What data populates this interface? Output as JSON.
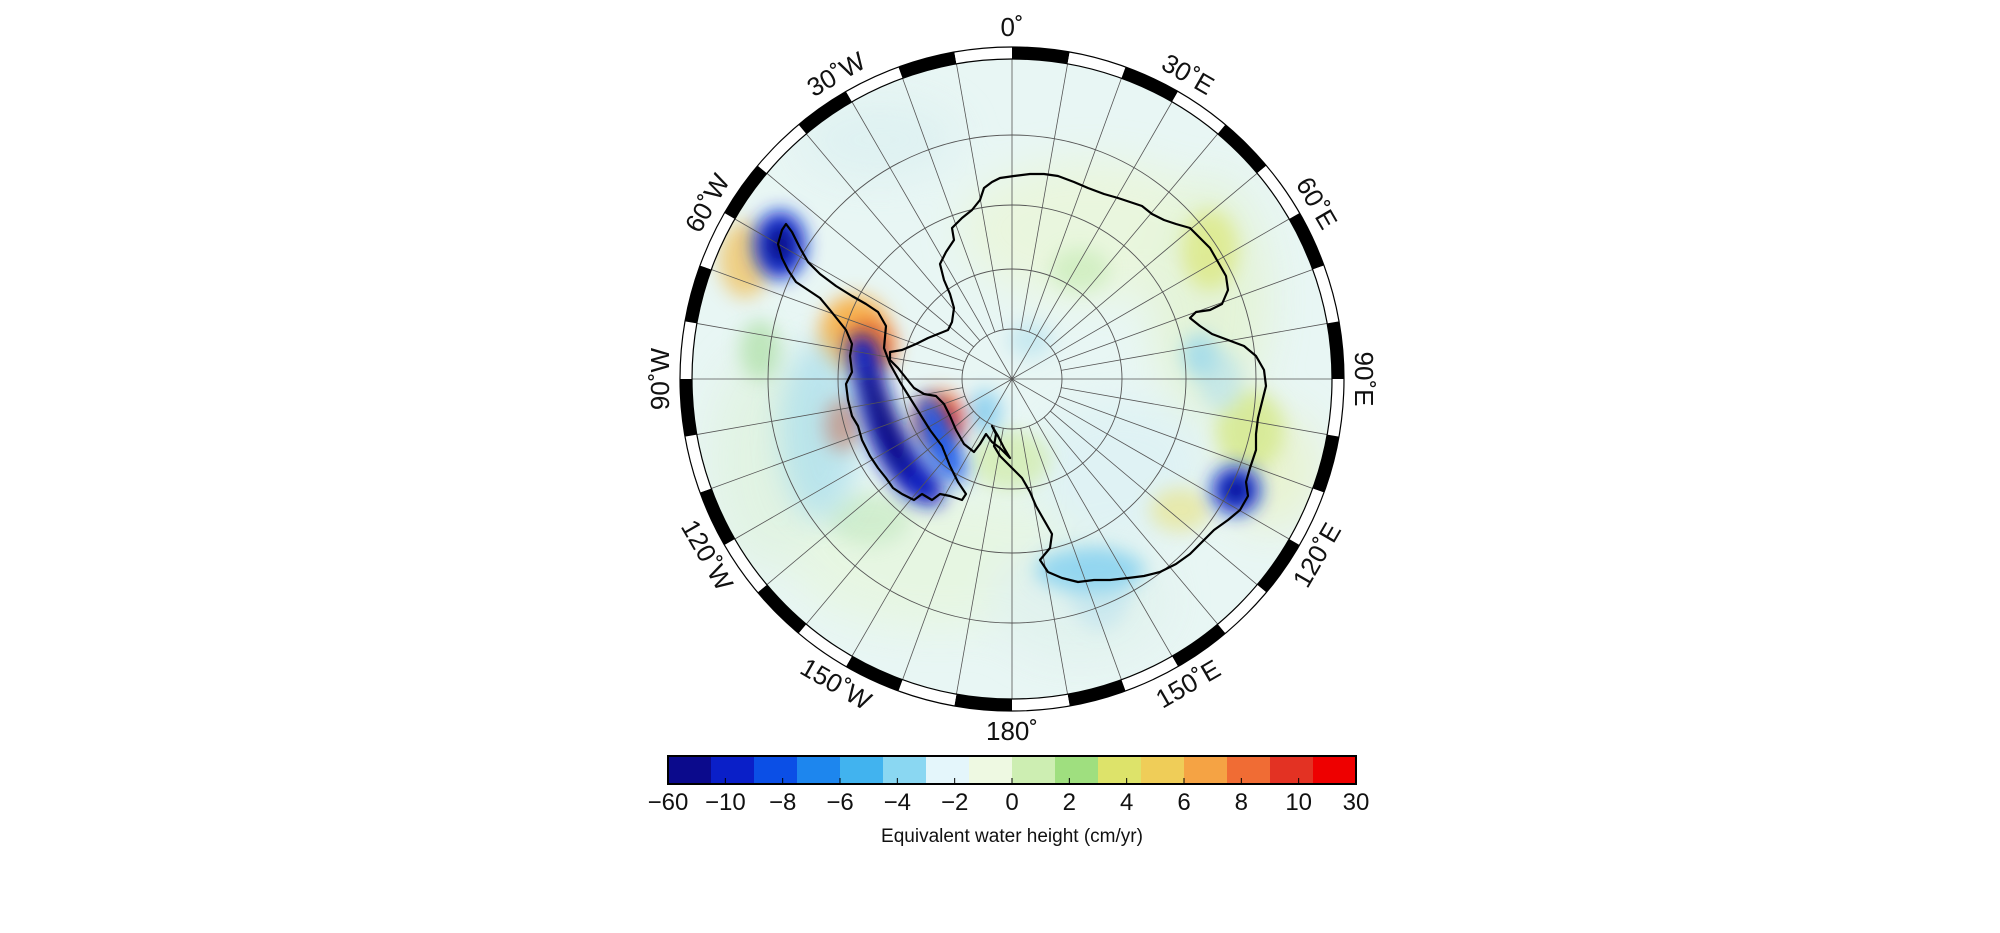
{
  "map": {
    "projection": "south polar stereographic",
    "graticule": {
      "meridian_step_deg": 10,
      "latitude_circles": 4
    },
    "longitude_labels": [
      {
        "lon": 0,
        "text": "0˚"
      },
      {
        "lon": 30,
        "text": "30˚E"
      },
      {
        "lon": 60,
        "text": "60˚E"
      },
      {
        "lon": 90,
        "text": "90˚E"
      },
      {
        "lon": 120,
        "text": "120˚E"
      },
      {
        "lon": 150,
        "text": "150˚E"
      },
      {
        "lon": 180,
        "text": "180˚"
      },
      {
        "lon": -150,
        "text": "150˚W"
      },
      {
        "lon": -120,
        "text": "120˚W"
      },
      {
        "lon": -90,
        "text": "90˚W"
      },
      {
        "lon": -60,
        "text": "60˚W"
      },
      {
        "lon": -30,
        "text": "30˚W"
      }
    ],
    "frame": "alternating black/white ticks every 10˚",
    "coastline": "Antarctica",
    "anomalies": [
      {
        "region": "Antarctic Peninsula tip",
        "value": -60
      },
      {
        "region": "Amundsen Sea coast",
        "value": -60
      },
      {
        "region": "Amundsen Sea inland band",
        "value": -10
      },
      {
        "region": "West Antarctica interior",
        "value": 12
      },
      {
        "region": "Bellingshausen coast",
        "value": 10
      },
      {
        "region": "Wilkes Land / Totten",
        "value": -60
      },
      {
        "region": "Ross Ice Shelf edge",
        "value": -4
      },
      {
        "region": "Queen Maud Land",
        "value": 3
      },
      {
        "region": "Weddell offshore",
        "value": 6
      }
    ]
  },
  "colorbar": {
    "tick_labels": [
      "−60",
      "−10",
      "−8",
      "−6",
      "−4",
      "−2",
      "0",
      "2",
      "4",
      "6",
      "8",
      "10",
      "30"
    ],
    "colors": [
      "#0b0a8c",
      "#0a1fc8",
      "#0b4fe6",
      "#1d86ee",
      "#41b3ef",
      "#8ad7f2",
      "#e4f6fb",
      "#eef9e2",
      "#cdeeb2",
      "#9fdf7f",
      "#dde36a",
      "#efcd58",
      "#f5a344",
      "#f06c34",
      "#e33223",
      "#ee0000"
    ],
    "title": "Equivalent water height (cm/yr)"
  }
}
